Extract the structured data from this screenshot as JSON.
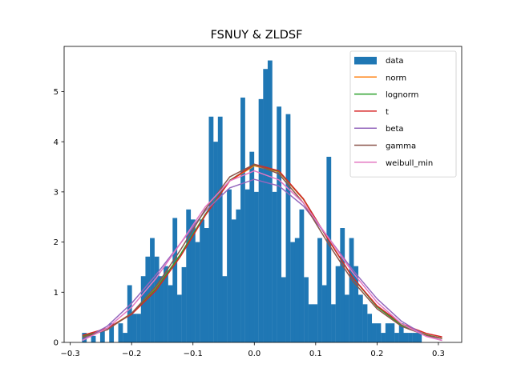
{
  "chart_data": {
    "type": "bar",
    "title": "FSNUY & ZLDSF",
    "xlabel": "",
    "ylabel": "",
    "xlim": [
      -0.31,
      0.338
    ],
    "ylim": [
      0,
      5.9
    ],
    "xticks": [
      -0.3,
      -0.2,
      -0.1,
      0.0,
      0.1,
      0.2,
      0.3
    ],
    "xtick_labels": [
      "−0.3",
      "−0.2",
      "−0.1",
      "0.0",
      "0.1",
      "0.2",
      "0.3"
    ],
    "yticks": [
      0,
      1,
      2,
      3,
      4,
      5
    ],
    "ytick_labels": [
      "0",
      "1",
      "2",
      "3",
      "4",
      "5"
    ],
    "legend_position": "top-right",
    "grid": false,
    "histogram": {
      "name": "data",
      "color": "#1f77b4",
      "bin_start": -0.2808,
      "bin_width": 0.00738,
      "values": [
        0.19,
        0.0,
        0.13,
        0.0,
        0.26,
        0.0,
        0.38,
        0.0,
        0.38,
        0.19,
        1.14,
        0.57,
        0.57,
        1.32,
        1.71,
        2.08,
        1.71,
        1.32,
        1.52,
        1.14,
        2.48,
        0.95,
        1.5,
        2.65,
        2.45,
        2.0,
        2.45,
        2.28,
        4.5,
        4.0,
        4.5,
        1.32,
        3.05,
        2.45,
        2.65,
        4.88,
        3.05,
        3.8,
        3.0,
        4.85,
        5.45,
        5.62,
        3.0,
        4.7,
        1.3,
        4.55,
        2.0,
        2.08,
        2.65,
        1.3,
        0.76,
        0.76,
        2.08,
        1.14,
        3.7,
        0.76,
        1.52,
        2.28,
        0.95,
        2.08,
        1.52,
        0.95,
        0.76,
        0.57,
        0.38,
        0.38,
        0.19,
        0.38,
        0.38,
        0.19,
        0.38,
        0.19,
        0.19,
        0.19,
        0.19
      ]
    },
    "series": [
      {
        "name": "norm",
        "color": "#ff7f0e",
        "x": [
          -0.28,
          -0.24,
          -0.2,
          -0.16,
          -0.12,
          -0.08,
          -0.04,
          0.0,
          0.04,
          0.08,
          0.12,
          0.16,
          0.2,
          0.24,
          0.28,
          0.306
        ],
        "y": [
          0.12,
          0.27,
          0.58,
          1.08,
          1.76,
          2.55,
          3.22,
          3.52,
          3.4,
          2.85,
          2.06,
          1.3,
          0.72,
          0.35,
          0.15,
          0.08
        ]
      },
      {
        "name": "lognorm",
        "color": "#2ca02c",
        "x": [
          -0.28,
          -0.24,
          -0.2,
          -0.16,
          -0.12,
          -0.08,
          -0.04,
          0.0,
          0.04,
          0.08,
          0.12,
          0.16,
          0.2,
          0.24,
          0.28,
          0.306
        ],
        "y": [
          0.12,
          0.26,
          0.57,
          1.07,
          1.76,
          2.55,
          3.23,
          3.54,
          3.41,
          2.86,
          2.06,
          1.3,
          0.71,
          0.34,
          0.15,
          0.08
        ]
      },
      {
        "name": "t",
        "color": "#d62728",
        "x": [
          -0.28,
          -0.24,
          -0.2,
          -0.16,
          -0.12,
          -0.08,
          -0.04,
          0.0,
          0.04,
          0.08,
          0.12,
          0.16,
          0.2,
          0.24,
          0.28,
          0.306
        ],
        "y": [
          0.14,
          0.28,
          0.56,
          1.04,
          1.72,
          2.53,
          3.22,
          3.55,
          3.42,
          2.86,
          2.06,
          1.3,
          0.73,
          0.37,
          0.18,
          0.11
        ]
      },
      {
        "name": "beta",
        "color": "#9467bd",
        "x": [
          -0.28,
          -0.24,
          -0.2,
          -0.16,
          -0.12,
          -0.08,
          -0.04,
          0.0,
          0.04,
          0.08,
          0.12,
          0.16,
          0.2,
          0.24,
          0.28,
          0.306
        ],
        "y": [
          0.05,
          0.32,
          0.78,
          1.35,
          1.98,
          2.62,
          3.08,
          3.25,
          3.12,
          2.72,
          2.1,
          1.45,
          0.87,
          0.42,
          0.13,
          0.04
        ]
      },
      {
        "name": "gamma",
        "color": "#8c564b",
        "x": [
          -0.28,
          -0.24,
          -0.2,
          -0.16,
          -0.12,
          -0.08,
          -0.04,
          0.0,
          0.04,
          0.08,
          0.12,
          0.16,
          0.2,
          0.24,
          0.28,
          0.306
        ],
        "y": [
          0.1,
          0.25,
          0.58,
          1.12,
          1.85,
          2.65,
          3.3,
          3.55,
          3.36,
          2.78,
          1.98,
          1.23,
          0.67,
          0.32,
          0.14,
          0.08
        ]
      },
      {
        "name": "weibull_min",
        "color": "#e377c2",
        "x": [
          -0.28,
          -0.24,
          -0.2,
          -0.16,
          -0.12,
          -0.08,
          -0.04,
          0.0,
          0.04,
          0.08,
          0.12,
          0.16,
          0.2,
          0.24,
          0.28,
          0.306
        ],
        "y": [
          0.04,
          0.28,
          0.7,
          1.28,
          1.98,
          2.7,
          3.22,
          3.42,
          3.24,
          2.78,
          2.1,
          1.4,
          0.8,
          0.37,
          0.12,
          0.04
        ]
      }
    ]
  }
}
